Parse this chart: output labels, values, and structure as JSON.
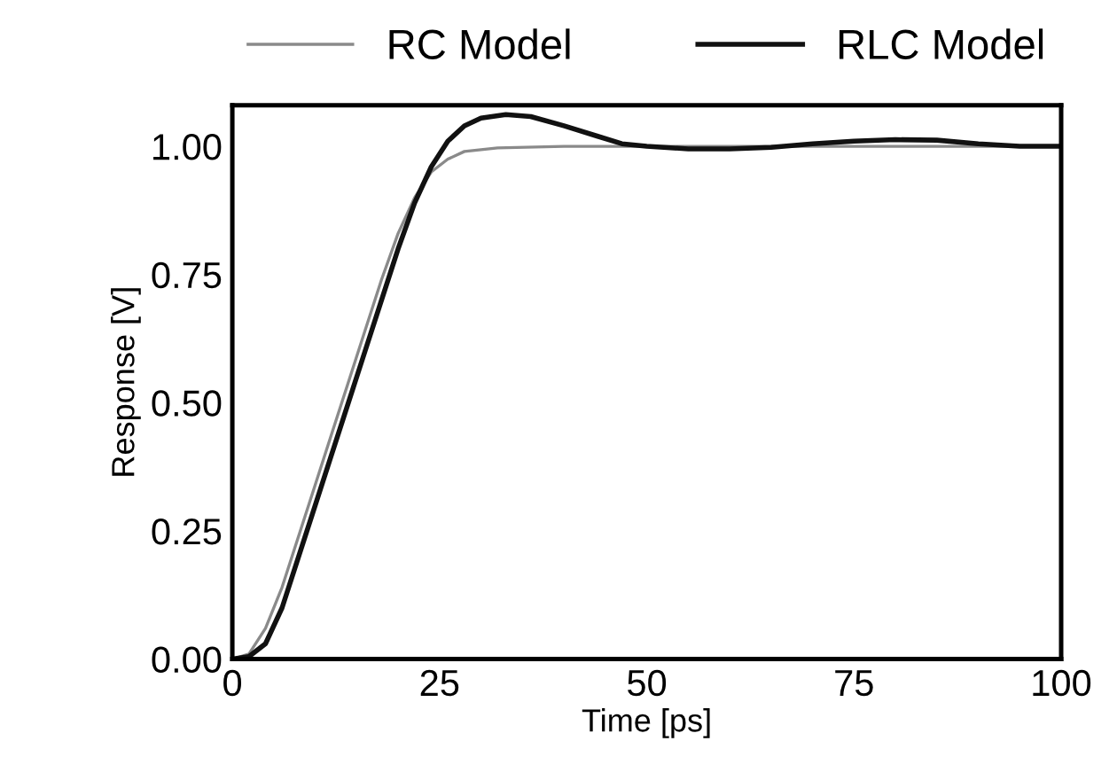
{
  "chart_data": {
    "type": "line",
    "xlabel": "Time [ps]",
    "ylabel": "Response [V]",
    "xlim": [
      0,
      100
    ],
    "ylim": [
      0,
      1.08
    ],
    "xticks": [
      0,
      25,
      50,
      75,
      100
    ],
    "yticks": [
      {
        "value": 0,
        "label": "0.00"
      },
      {
        "value": 0.25,
        "label": "0.25"
      },
      {
        "value": 0.5,
        "label": "0.50"
      },
      {
        "value": 0.75,
        "label": "0.75"
      },
      {
        "value": 1,
        "label": "1.00"
      }
    ],
    "grid": false,
    "legend": "top",
    "marker": "none",
    "series": [
      {
        "name": "RC Model",
        "color": "#8a8a8a",
        "line_style": "solid",
        "x": [
          0,
          2,
          4,
          6,
          8,
          10,
          12,
          14,
          16,
          18,
          20,
          22,
          24,
          26,
          28,
          32,
          40,
          50,
          100
        ],
        "values": [
          0,
          0.01,
          0.06,
          0.14,
          0.24,
          0.34,
          0.44,
          0.54,
          0.64,
          0.74,
          0.83,
          0.9,
          0.95,
          0.975,
          0.99,
          0.997,
          1.0,
          1.0,
          1.0
        ]
      },
      {
        "name": "RLC Model",
        "color": "#111111",
        "line_style": "solid",
        "x": [
          0,
          2,
          4,
          6,
          8,
          10,
          12,
          14,
          16,
          18,
          20,
          22,
          24,
          26,
          28,
          30,
          33,
          36,
          40,
          44,
          47,
          50,
          55,
          60,
          65,
          70,
          75,
          80,
          85,
          90,
          95,
          100
        ],
        "values": [
          0,
          0.005,
          0.03,
          0.1,
          0.2,
          0.3,
          0.4,
          0.5,
          0.6,
          0.7,
          0.8,
          0.89,
          0.96,
          1.01,
          1.04,
          1.055,
          1.062,
          1.058,
          1.04,
          1.02,
          1.005,
          1.0,
          0.995,
          0.995,
          0.998,
          1.005,
          1.01,
          1.013,
          1.012,
          1.005,
          1.0,
          1.0
        ]
      }
    ]
  }
}
